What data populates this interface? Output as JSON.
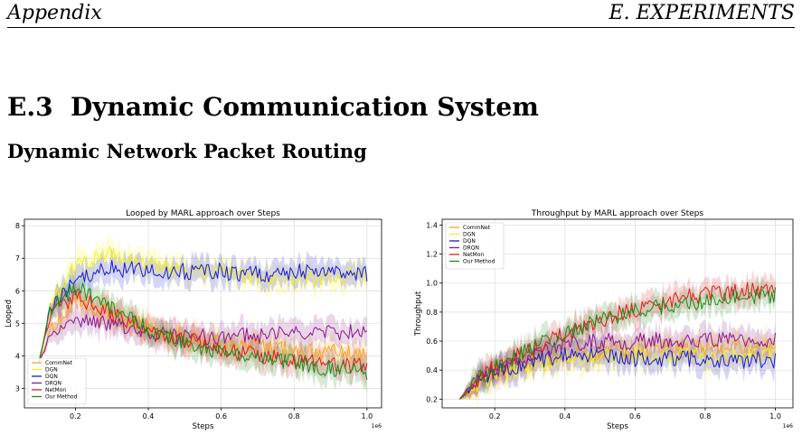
{
  "header": {
    "left": "Appendix",
    "right": "E.  EXPERIMENTS"
  },
  "section": {
    "number": "E.3",
    "title": "Dynamic Communication System"
  },
  "subsection": {
    "title": "Dynamic Network Packet Routing"
  },
  "colors": {
    "CommNet": "#f5a623",
    "DGN": "#f2f21a",
    "DQN": "#1a1ad9",
    "DRQN": "#8b1a8b",
    "NetMon": "#e41a1a",
    "Our Method": "#1a8c1a"
  },
  "chart_data": [
    {
      "type": "line",
      "title": "Looped by MARL approach over Steps",
      "xlabel": "Steps",
      "ylabel": "Looped",
      "x_multiplier": "1e6",
      "xlim": [
        0.06,
        1.04
      ],
      "ylim": [
        2.4,
        8.2
      ],
      "xticks": [
        0.2,
        0.4,
        0.6,
        0.8,
        1.0
      ],
      "xtick_labels": [
        "0.2",
        "0.4",
        "0.6",
        "0.8",
        "1.0"
      ],
      "yticks": [
        3,
        4,
        5,
        6,
        7,
        8
      ],
      "ytick_labels": [
        "3",
        "4",
        "5",
        "6",
        "7",
        "8"
      ],
      "grid": true,
      "legend": "lower-left",
      "series": [
        {
          "name": "CommNet",
          "x": [
            0.1,
            0.13,
            0.2,
            0.3,
            0.4,
            0.5,
            0.6,
            0.7,
            0.8,
            0.9,
            1.0
          ],
          "y": [
            3.8,
            4.8,
            5.6,
            5.3,
            4.9,
            4.6,
            4.4,
            4.3,
            4.2,
            4.1,
            4.0
          ]
        },
        {
          "name": "DGN",
          "x": [
            0.1,
            0.13,
            0.2,
            0.3,
            0.4,
            0.5,
            0.6,
            0.7,
            0.8,
            0.9,
            1.0
          ],
          "y": [
            3.8,
            5.5,
            6.8,
            7.1,
            6.8,
            6.6,
            6.6,
            6.4,
            6.4,
            6.4,
            6.5
          ]
        },
        {
          "name": "DQN",
          "x": [
            0.1,
            0.13,
            0.2,
            0.3,
            0.4,
            0.5,
            0.6,
            0.7,
            0.8,
            0.9,
            1.0
          ],
          "y": [
            3.8,
            5.4,
            6.3,
            6.7,
            6.6,
            6.6,
            6.6,
            6.5,
            6.6,
            6.6,
            6.5
          ]
        },
        {
          "name": "DRQN",
          "x": [
            0.1,
            0.13,
            0.2,
            0.3,
            0.4,
            0.5,
            0.6,
            0.7,
            0.8,
            0.9,
            1.0
          ],
          "y": [
            3.8,
            4.6,
            5.0,
            5.0,
            4.7,
            4.6,
            4.6,
            4.6,
            4.7,
            4.7,
            4.8
          ]
        },
        {
          "name": "NetMon",
          "x": [
            0.1,
            0.13,
            0.2,
            0.3,
            0.4,
            0.5,
            0.6,
            0.7,
            0.8,
            0.9,
            1.0
          ],
          "y": [
            3.8,
            5.2,
            5.8,
            5.3,
            4.8,
            4.5,
            4.2,
            4.0,
            3.9,
            3.7,
            3.7
          ]
        },
        {
          "name": "Our Method",
          "x": [
            0.1,
            0.13,
            0.2,
            0.3,
            0.4,
            0.5,
            0.6,
            0.7,
            0.8,
            0.9,
            1.0
          ],
          "y": [
            3.8,
            5.4,
            6.1,
            5.5,
            4.8,
            4.4,
            4.1,
            3.9,
            3.8,
            3.6,
            3.5
          ]
        }
      ]
    },
    {
      "type": "line",
      "title": "Throughput by MARL approach over Steps",
      "xlabel": "Steps",
      "ylabel": "Throughput",
      "x_multiplier": "1e6",
      "xlim": [
        0.05,
        1.05
      ],
      "ylim": [
        0.14,
        1.44
      ],
      "xticks": [
        0.2,
        0.4,
        0.6,
        0.8,
        1.0
      ],
      "xtick_labels": [
        "0.2",
        "0.4",
        "0.6",
        "0.8",
        "1.0"
      ],
      "yticks": [
        0.2,
        0.4,
        0.6,
        0.8,
        1.0,
        1.2,
        1.4
      ],
      "ytick_labels": [
        "0.2",
        "0.4",
        "0.6",
        "0.8",
        "1.0",
        "1.2",
        "1.4"
      ],
      "grid": true,
      "legend": "upper-left",
      "series": [
        {
          "name": "CommNet",
          "x": [
            0.1,
            0.15,
            0.2,
            0.3,
            0.4,
            0.5,
            0.6,
            0.7,
            0.8,
            0.9,
            1.0
          ],
          "y": [
            0.2,
            0.3,
            0.38,
            0.45,
            0.5,
            0.52,
            0.54,
            0.55,
            0.55,
            0.55,
            0.55
          ]
        },
        {
          "name": "DGN",
          "x": [
            0.1,
            0.15,
            0.2,
            0.3,
            0.4,
            0.5,
            0.6,
            0.7,
            0.8,
            0.9,
            1.0
          ],
          "y": [
            0.2,
            0.3,
            0.37,
            0.42,
            0.48,
            0.5,
            0.5,
            0.5,
            0.5,
            0.5,
            0.5
          ]
        },
        {
          "name": "DQN",
          "x": [
            0.1,
            0.15,
            0.2,
            0.3,
            0.4,
            0.5,
            0.6,
            0.7,
            0.8,
            0.9,
            1.0
          ],
          "y": [
            0.2,
            0.3,
            0.38,
            0.46,
            0.5,
            0.5,
            0.48,
            0.48,
            0.48,
            0.47,
            0.47
          ]
        },
        {
          "name": "DRQN",
          "x": [
            0.1,
            0.15,
            0.2,
            0.3,
            0.4,
            0.5,
            0.6,
            0.7,
            0.8,
            0.9,
            1.0
          ],
          "y": [
            0.2,
            0.32,
            0.4,
            0.5,
            0.58,
            0.6,
            0.6,
            0.6,
            0.61,
            0.61,
            0.6
          ]
        },
        {
          "name": "NetMon",
          "x": [
            0.1,
            0.15,
            0.2,
            0.3,
            0.4,
            0.5,
            0.6,
            0.7,
            0.8,
            0.9,
            1.0
          ],
          "y": [
            0.2,
            0.33,
            0.42,
            0.55,
            0.65,
            0.75,
            0.82,
            0.88,
            0.92,
            0.95,
            0.96
          ]
        },
        {
          "name": "Our Method",
          "x": [
            0.1,
            0.15,
            0.2,
            0.3,
            0.4,
            0.5,
            0.6,
            0.7,
            0.8,
            0.9,
            1.0
          ],
          "y": [
            0.2,
            0.33,
            0.42,
            0.55,
            0.65,
            0.74,
            0.8,
            0.85,
            0.88,
            0.9,
            0.92
          ]
        }
      ]
    }
  ]
}
